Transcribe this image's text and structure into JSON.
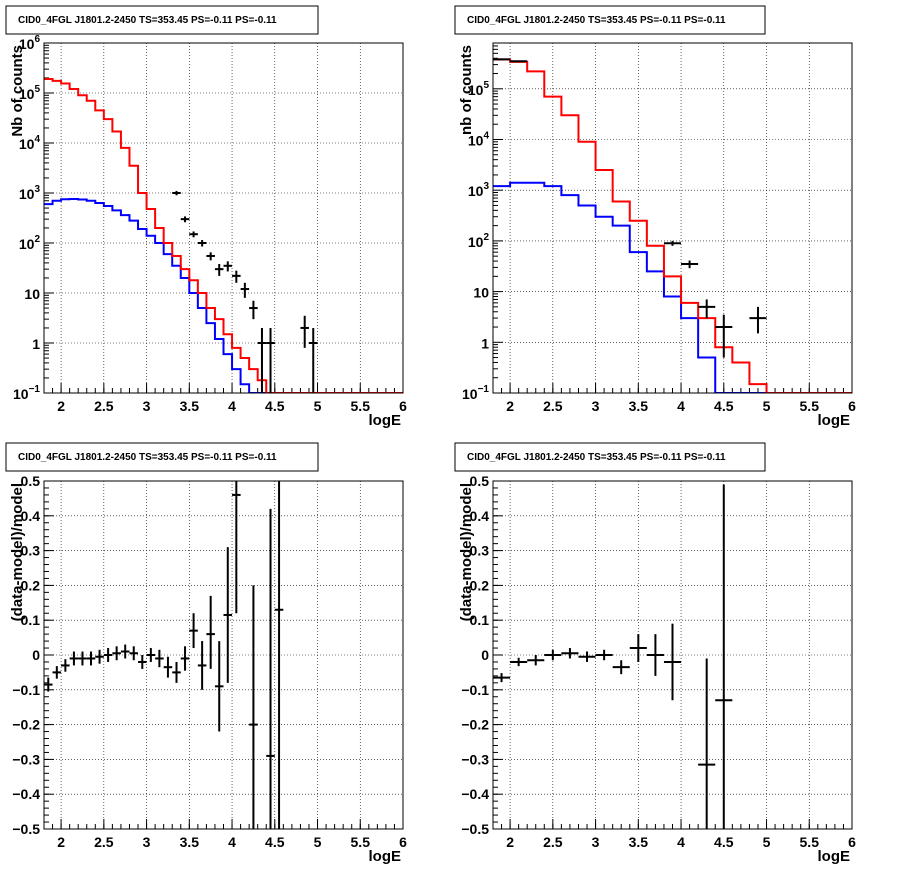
{
  "chart_data": [
    {
      "type": "step-histogram",
      "title": "CID0_4FGL J1801.2-2450 TS=353.45 PS=-0.11 PS=-0.11",
      "xlabel": "logE",
      "ylabel": "Nb of counts",
      "xlim": [
        1.8,
        6.0
      ],
      "ylim": [
        0.1,
        1000000
      ],
      "yscale": "log",
      "grid": true,
      "xticks": [
        "2",
        "2.5",
        "3",
        "3.5",
        "4",
        "4.5",
        "5",
        "5.5",
        "6"
      ],
      "yticks": [
        {
          "v": 0.1,
          "base": "10",
          "exp": "−1"
        },
        {
          "v": 1,
          "base": "1"
        },
        {
          "v": 10,
          "base": "10"
        },
        {
          "v": 100,
          "base": "10",
          "exp": "2"
        },
        {
          "v": 1000,
          "base": "10",
          "exp": "3"
        },
        {
          "v": 10000,
          "base": "10",
          "exp": "4"
        },
        {
          "v": 100000,
          "base": "10",
          "exp": "5"
        },
        {
          "v": 1000000,
          "base": "10",
          "exp": "6"
        }
      ],
      "bin_edges": [
        1.8,
        1.9,
        2.0,
        2.1,
        2.2,
        2.3,
        2.4,
        2.5,
        2.6,
        2.7,
        2.8,
        2.9,
        3.0,
        3.1,
        3.2,
        3.3,
        3.4,
        3.5,
        3.6,
        3.7,
        3.8,
        3.9,
        4.0,
        4.1,
        4.2,
        4.3,
        4.4,
        4.5,
        4.6,
        4.7,
        4.8,
        4.9,
        5.0,
        5.1,
        5.2,
        5.3,
        5.4,
        5.5,
        5.6,
        5.7,
        5.8,
        5.9,
        6.0
      ],
      "series": [
        {
          "color": "#ff0000",
          "values": [
            180000,
            160000,
            140000,
            110000,
            80000,
            55000,
            35000,
            20000,
            11000,
            5500,
            3000,
            1200,
            550,
            220,
            120,
            55,
            28,
            15,
            8,
            4.5,
            2.5,
            1.2,
            0.6,
            0.25,
            0.1,
            0.05,
            0.05,
            0.05,
            0.05,
            0.05,
            0.05,
            0.05,
            0.05,
            0.05,
            0.05,
            0.05,
            0.05,
            0.05,
            0.05,
            0.05,
            0.05,
            0.05
          ]
        },
        {
          "color": "#ff0000",
          "values": [
            180000,
            160000,
            140000,
            110000,
            80000,
            55000,
            35000,
            20000,
            11000,
            5500,
            3000,
            1200,
            550,
            220,
            120,
            55,
            28,
            15,
            8,
            4.5,
            2.5,
            1.2,
            0.6,
            0.25,
            0.1,
            0.05,
            0.05,
            0.05,
            0.05,
            0.05,
            0.05,
            0.05,
            0.05,
            0.05,
            0.05,
            0.05,
            0.05,
            0.05,
            0.05,
            0.05,
            0.05,
            0.05
          ]
        }
      ],
      "model_red": [
        190000,
        175000,
        155000,
        125000,
        95000,
        70000,
        48000,
        32000,
        20000,
        12000,
        6000,
        3000,
        1400,
        800,
        400,
        200,
        100,
        55,
        30,
        17,
        8,
        4,
        2,
        1.2,
        0.7,
        0.4,
        0.2,
        0.12,
        0.05,
        0.05,
        0.05,
        0.05,
        0.05,
        0.05,
        0.05,
        0.05,
        0.05,
        0.05,
        0.05,
        0.05,
        0.05,
        0.05
      ],
      "red_values": [
        190000,
        175000,
        155000,
        120000,
        90000,
        70000,
        45000,
        30000,
        17000,
        8000,
        3500,
        1000,
        480,
        200,
        100,
        55,
        30,
        18,
        10,
        5,
        3,
        1.5,
        0.8,
        0.5,
        0.3,
        0.18,
        0.1,
        0.05,
        0.05,
        0.05,
        0.05,
        0.05,
        0.05,
        0.05,
        0.05,
        0.05,
        0.05,
        0.05,
        0.05,
        0.05,
        0.05,
        0.05
      ],
      "blue_values": [
        600,
        700,
        750,
        760,
        740,
        700,
        630,
        550,
        450,
        360,
        280,
        190,
        140,
        100,
        60,
        35,
        20,
        10,
        5,
        2.5,
        1.2,
        0.6,
        0.3,
        0.15,
        0.08,
        0.05,
        0.05,
        0.05,
        0.05,
        0.05,
        0.05,
        0.05,
        0.05,
        0.05,
        0.05,
        0.05,
        0.05,
        0.05,
        0.05,
        0.05,
        0.05,
        0.05
      ],
      "points": [
        {
          "x": 3.35,
          "y": 1000,
          "xe": 0.05,
          "ylo": 900,
          "yhi": 1100
        },
        {
          "x": 3.45,
          "y": 300,
          "xe": 0.05,
          "ylo": 260,
          "yhi": 340
        },
        {
          "x": 3.55,
          "y": 150,
          "xe": 0.05,
          "ylo": 130,
          "yhi": 170
        },
        {
          "x": 3.65,
          "y": 100,
          "xe": 0.05,
          "ylo": 85,
          "yhi": 115
        },
        {
          "x": 3.75,
          "y": 55,
          "xe": 0.05,
          "ylo": 45,
          "yhi": 65
        },
        {
          "x": 3.85,
          "y": 30,
          "xe": 0.05,
          "ylo": 22,
          "yhi": 38
        },
        {
          "x": 3.95,
          "y": 35,
          "xe": 0.05,
          "ylo": 27,
          "yhi": 43
        },
        {
          "x": 4.05,
          "y": 22,
          "xe": 0.05,
          "ylo": 16,
          "yhi": 28
        },
        {
          "x": 4.15,
          "y": 12,
          "xe": 0.05,
          "ylo": 8,
          "yhi": 16
        },
        {
          "x": 4.25,
          "y": 5,
          "xe": 0.05,
          "ylo": 3,
          "yhi": 7
        },
        {
          "x": 4.35,
          "y": 1,
          "xe": 0.05,
          "ylo": 0.1,
          "yhi": 2
        },
        {
          "x": 4.45,
          "y": 1,
          "xe": 0.05,
          "ylo": 0.1,
          "yhi": 2
        },
        {
          "x": 4.85,
          "y": 2,
          "xe": 0.05,
          "ylo": 0.8,
          "yhi": 3.5
        },
        {
          "x": 4.95,
          "y": 1,
          "xe": 0.05,
          "ylo": 0.1,
          "yhi": 2
        }
      ]
    },
    {
      "type": "step-histogram",
      "title": "CID0_4FGL J1801.2-2450 TS=353.45 PS=-0.11 PS=-0.11",
      "xlabel": "logE",
      "ylabel": "nb of counts",
      "xlim": [
        1.8,
        6.0
      ],
      "ylim": [
        0.1,
        800000
      ],
      "yscale": "log",
      "grid": true,
      "xticks": [
        "2",
        "2.5",
        "3",
        "3.5",
        "4",
        "4.5",
        "5",
        "5.5",
        "6"
      ],
      "yticks": [
        {
          "v": 0.1,
          "base": "10",
          "exp": "−1"
        },
        {
          "v": 1,
          "base": "1"
        },
        {
          "v": 10,
          "base": "10"
        },
        {
          "v": 100,
          "base": "10",
          "exp": "2"
        },
        {
          "v": 1000,
          "base": "10",
          "exp": "3"
        },
        {
          "v": 10000,
          "base": "10",
          "exp": "4"
        },
        {
          "v": 100000,
          "base": "10",
          "exp": "5"
        }
      ],
      "bin_edges": [
        1.8,
        2.0,
        2.2,
        2.4,
        2.6,
        2.8,
        3.0,
        3.2,
        3.4,
        3.6,
        3.8,
        4.0,
        4.2,
        4.4,
        4.6,
        4.8,
        5.0,
        5.2,
        5.4,
        5.6,
        5.8,
        6.0
      ],
      "red_values": [
        380000,
        340000,
        220000,
        70000,
        30000,
        9000,
        2500,
        600,
        250,
        80,
        20,
        6,
        3,
        0.8,
        0.4,
        0.15,
        0.05,
        0.05,
        0.05,
        0.05,
        0.05
      ],
      "blue_values": [
        1200,
        1400,
        1400,
        1200,
        800,
        500,
        300,
        200,
        60,
        25,
        8,
        3,
        0.5,
        0.1,
        0.05,
        0.05,
        0.05,
        0.05,
        0.05,
        0.05,
        0.05
      ],
      "points": [
        {
          "x": 1.9,
          "y": 380000,
          "xe": 0.1,
          "ylo": 370000,
          "yhi": 390000
        },
        {
          "x": 2.1,
          "y": 350000,
          "xe": 0.1,
          "ylo": 340000,
          "yhi": 360000
        },
        {
          "x": 3.9,
          "y": 90,
          "xe": 0.1,
          "ylo": 80,
          "yhi": 100
        },
        {
          "x": 4.1,
          "y": 35,
          "xe": 0.1,
          "ylo": 29,
          "yhi": 41
        },
        {
          "x": 4.3,
          "y": 5,
          "xe": 0.1,
          "ylo": 3,
          "yhi": 7
        },
        {
          "x": 4.5,
          "y": 2,
          "xe": 0.1,
          "ylo": 0.5,
          "yhi": 3.5
        },
        {
          "x": 4.9,
          "y": 3,
          "xe": 0.1,
          "ylo": 1.5,
          "yhi": 5
        }
      ]
    },
    {
      "type": "scatter",
      "title": "CID0_4FGL J1801.2-2450 TS=353.45 PS=-0.11 PS=-0.11",
      "xlabel": "logE",
      "ylabel": "(data-model)/model",
      "xlim": [
        1.8,
        6.0
      ],
      "ylim": [
        -0.5,
        0.5
      ],
      "grid": true,
      "xticks": [
        "2",
        "2.5",
        "3",
        "3.5",
        "4",
        "4.5",
        "5",
        "5.5",
        "6"
      ],
      "yticks": [
        "−0.5",
        "−0.4",
        "−0.3",
        "−0.2",
        "−0.1",
        "0",
        "0.1",
        "0.2",
        "0.3",
        "0.4",
        "0.5"
      ],
      "points": [
        {
          "x": 1.85,
          "y": -0.085,
          "xe": 0.05,
          "ylo": -0.105,
          "yhi": -0.065
        },
        {
          "x": 1.95,
          "y": -0.05,
          "xe": 0.05,
          "ylo": -0.068,
          "yhi": -0.032
        },
        {
          "x": 2.05,
          "y": -0.03,
          "xe": 0.05,
          "ylo": -0.048,
          "yhi": -0.012
        },
        {
          "x": 2.15,
          "y": -0.01,
          "xe": 0.05,
          "ylo": -0.03,
          "yhi": 0.01
        },
        {
          "x": 2.25,
          "y": -0.01,
          "xe": 0.05,
          "ylo": -0.03,
          "yhi": 0.01
        },
        {
          "x": 2.35,
          "y": -0.01,
          "xe": 0.05,
          "ylo": -0.03,
          "yhi": 0.01
        },
        {
          "x": 2.45,
          "y": -0.005,
          "xe": 0.05,
          "ylo": -0.025,
          "yhi": 0.015
        },
        {
          "x": 2.55,
          "y": 0.0,
          "xe": 0.05,
          "ylo": -0.02,
          "yhi": 0.02
        },
        {
          "x": 2.65,
          "y": 0.005,
          "xe": 0.05,
          "ylo": -0.015,
          "yhi": 0.025
        },
        {
          "x": 2.75,
          "y": 0.01,
          "xe": 0.05,
          "ylo": -0.01,
          "yhi": 0.03
        },
        {
          "x": 2.85,
          "y": 0.005,
          "xe": 0.05,
          "ylo": -0.015,
          "yhi": 0.025
        },
        {
          "x": 2.95,
          "y": -0.02,
          "xe": 0.05,
          "ylo": -0.04,
          "yhi": 0.0
        },
        {
          "x": 3.05,
          "y": 0.0,
          "xe": 0.05,
          "ylo": -0.02,
          "yhi": 0.02
        },
        {
          "x": 3.15,
          "y": -0.01,
          "xe": 0.05,
          "ylo": -0.035,
          "yhi": 0.015
        },
        {
          "x": 3.25,
          "y": -0.035,
          "xe": 0.05,
          "ylo": -0.065,
          "yhi": -0.005
        },
        {
          "x": 3.35,
          "y": -0.05,
          "xe": 0.05,
          "ylo": -0.08,
          "yhi": -0.02
        },
        {
          "x": 3.45,
          "y": -0.01,
          "xe": 0.05,
          "ylo": -0.045,
          "yhi": 0.025
        },
        {
          "x": 3.55,
          "y": 0.07,
          "xe": 0.05,
          "ylo": 0.02,
          "yhi": 0.12
        },
        {
          "x": 3.65,
          "y": -0.03,
          "xe": 0.05,
          "ylo": -0.1,
          "yhi": 0.04
        },
        {
          "x": 3.75,
          "y": 0.06,
          "xe": 0.05,
          "ylo": -0.04,
          "yhi": 0.17
        },
        {
          "x": 3.85,
          "y": -0.09,
          "xe": 0.05,
          "ylo": -0.22,
          "yhi": 0.04
        },
        {
          "x": 3.95,
          "y": 0.115,
          "xe": 0.05,
          "ylo": -0.08,
          "yhi": 0.31
        },
        {
          "x": 4.05,
          "y": 0.46,
          "xe": 0.05,
          "ylo": 0.12,
          "yhi": 0.5
        },
        {
          "x": 4.25,
          "y": -0.2,
          "xe": 0.05,
          "ylo": -0.5,
          "yhi": 0.2
        },
        {
          "x": 4.45,
          "y": -0.29,
          "xe": 0.05,
          "ylo": -0.5,
          "yhi": 0.42
        },
        {
          "x": 4.55,
          "y": 0.13,
          "xe": 0.05,
          "ylo": -0.5,
          "yhi": 0.5
        }
      ]
    },
    {
      "type": "scatter",
      "title": "CID0_4FGL J1801.2-2450 TS=353.45 PS=-0.11 PS=-0.11",
      "xlabel": "logE",
      "ylabel": "(data-model)/model",
      "xlim": [
        1.8,
        6.0
      ],
      "ylim": [
        -0.5,
        0.5
      ],
      "grid": true,
      "xticks": [
        "2",
        "2.5",
        "3",
        "3.5",
        "4",
        "4.5",
        "5",
        "5.5",
        "6"
      ],
      "yticks": [
        "−0.5",
        "−0.4",
        "−0.3",
        "−0.2",
        "−0.1",
        "0",
        "0.1",
        "0.2",
        "0.3",
        "0.4",
        "0.5"
      ],
      "points": [
        {
          "x": 1.9,
          "y": -0.065,
          "xe": 0.1,
          "ylo": -0.078,
          "yhi": -0.052
        },
        {
          "x": 2.1,
          "y": -0.02,
          "xe": 0.1,
          "ylo": -0.032,
          "yhi": -0.008
        },
        {
          "x": 2.3,
          "y": -0.015,
          "xe": 0.1,
          "ylo": -0.03,
          "yhi": 0.0
        },
        {
          "x": 2.5,
          "y": 0.0,
          "xe": 0.1,
          "ylo": -0.015,
          "yhi": 0.015
        },
        {
          "x": 2.7,
          "y": 0.005,
          "xe": 0.1,
          "ylo": -0.01,
          "yhi": 0.02
        },
        {
          "x": 2.9,
          "y": -0.005,
          "xe": 0.1,
          "ylo": -0.02,
          "yhi": 0.01
        },
        {
          "x": 3.1,
          "y": 0.0,
          "xe": 0.1,
          "ylo": -0.015,
          "yhi": 0.015
        },
        {
          "x": 3.3,
          "y": -0.035,
          "xe": 0.1,
          "ylo": -0.055,
          "yhi": -0.015
        },
        {
          "x": 3.5,
          "y": 0.02,
          "xe": 0.1,
          "ylo": -0.02,
          "yhi": 0.06
        },
        {
          "x": 3.7,
          "y": 0.0,
          "xe": 0.1,
          "ylo": -0.06,
          "yhi": 0.06
        },
        {
          "x": 3.9,
          "y": -0.02,
          "xe": 0.1,
          "ylo": -0.13,
          "yhi": 0.09
        },
        {
          "x": 4.3,
          "y": -0.315,
          "xe": 0.1,
          "ylo": -0.5,
          "yhi": -0.01
        },
        {
          "x": 4.5,
          "y": -0.13,
          "xe": 0.1,
          "ylo": -0.5,
          "yhi": 0.49
        }
      ]
    }
  ]
}
